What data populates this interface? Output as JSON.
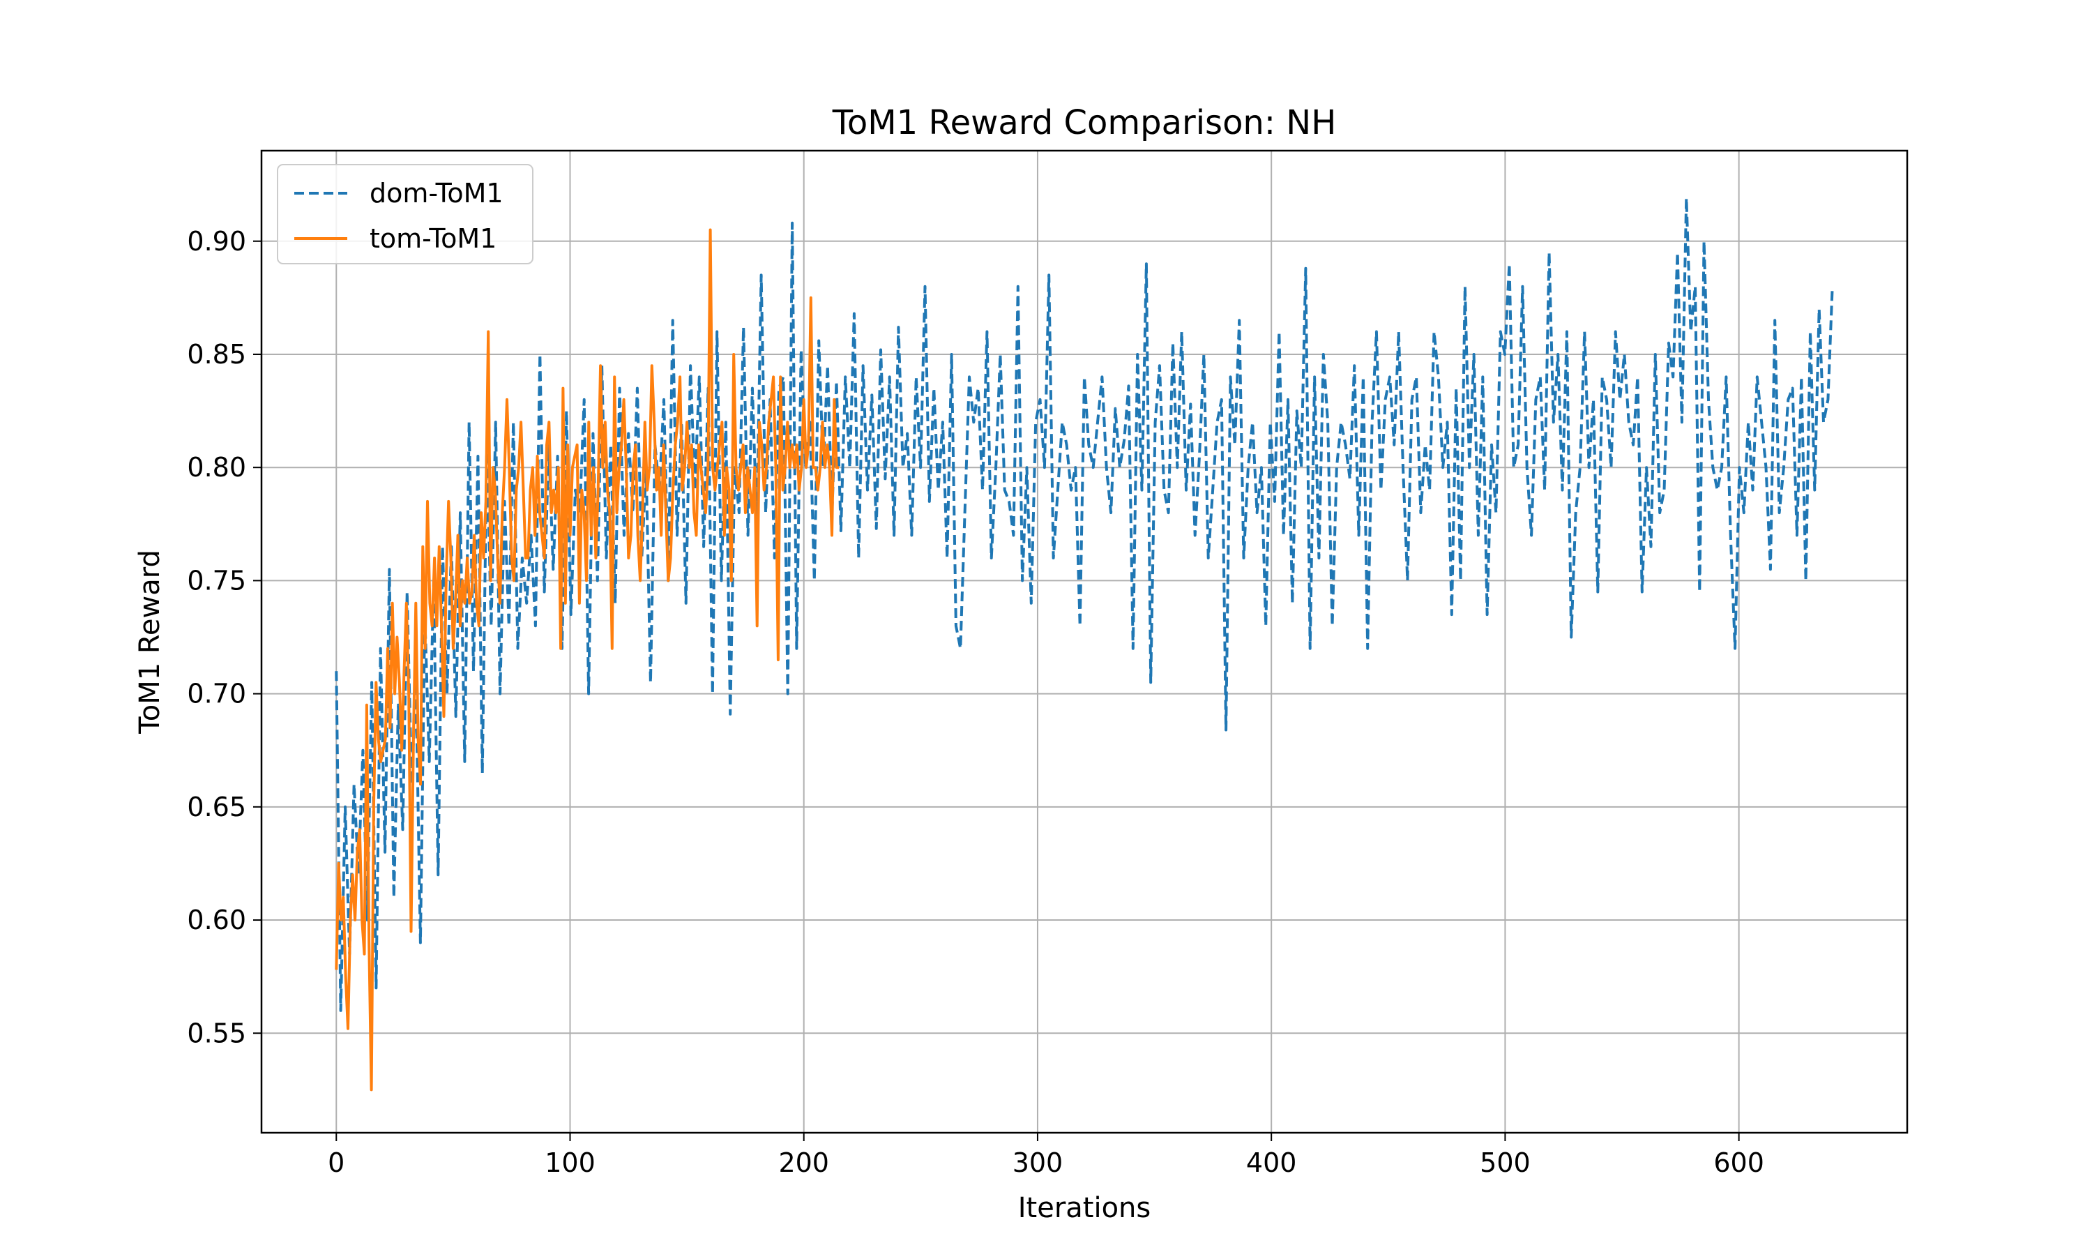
{
  "chart_data": {
    "type": "line",
    "title": "ToM1 Reward Comparison: NH",
    "xlabel": "Iterations",
    "ylabel": "ToM1 Reward",
    "xlim": [
      -32,
      672
    ],
    "ylim": [
      0.506,
      0.94
    ],
    "xticks": [
      0,
      100,
      200,
      300,
      400,
      500,
      600
    ],
    "xtick_labels": [
      "0",
      "100",
      "200",
      "300",
      "400",
      "500",
      "600"
    ],
    "yticks": [
      0.55,
      0.6,
      0.65,
      0.7,
      0.75,
      0.8,
      0.85,
      0.9
    ],
    "ytick_labels": [
      "0.55",
      "0.60",
      "0.65",
      "0.70",
      "0.75",
      "0.80",
      "0.85",
      "0.90"
    ],
    "grid": true,
    "legend_position": "top-left",
    "series": [
      {
        "name": "dom-ToM1",
        "color": "#1f77b4",
        "style": "dashed",
        "x_start": 0,
        "x_step": 2,
        "values": [
          0.71,
          0.56,
          0.65,
          0.585,
          0.66,
          0.62,
          0.675,
          0.6,
          0.705,
          0.57,
          0.72,
          0.63,
          0.755,
          0.61,
          0.695,
          0.64,
          0.745,
          0.66,
          0.705,
          0.59,
          0.735,
          0.67,
          0.75,
          0.62,
          0.765,
          0.7,
          0.765,
          0.69,
          0.78,
          0.67,
          0.82,
          0.71,
          0.805,
          0.665,
          0.81,
          0.73,
          0.82,
          0.7,
          0.785,
          0.73,
          0.82,
          0.72,
          0.76,
          0.74,
          0.77,
          0.73,
          0.85,
          0.745,
          0.81,
          0.755,
          0.805,
          0.72,
          0.825,
          0.735,
          0.79,
          0.78,
          0.83,
          0.7,
          0.815,
          0.75,
          0.845,
          0.76,
          0.81,
          0.74,
          0.835,
          0.77,
          0.815,
          0.78,
          0.835,
          0.76,
          0.8,
          0.705,
          0.81,
          0.79,
          0.83,
          0.75,
          0.865,
          0.77,
          0.82,
          0.74,
          0.845,
          0.79,
          0.84,
          0.765,
          0.835,
          0.7,
          0.86,
          0.75,
          0.82,
          0.691,
          0.8,
          0.78,
          0.862,
          0.77,
          0.835,
          0.775,
          0.885,
          0.78,
          0.83,
          0.76,
          0.835,
          0.84,
          0.7,
          0.908,
          0.72,
          0.852,
          0.8,
          0.82,
          0.75,
          0.856,
          0.8,
          0.845,
          0.78,
          0.838,
          0.772,
          0.84,
          0.8,
          0.868,
          0.76,
          0.845,
          0.79,
          0.832,
          0.773,
          0.852,
          0.795,
          0.84,
          0.77,
          0.862,
          0.8,
          0.815,
          0.77,
          0.84,
          0.8,
          0.88,
          0.785,
          0.835,
          0.79,
          0.82,
          0.76,
          0.85,
          0.73,
          0.72,
          0.78,
          0.84,
          0.82,
          0.835,
          0.79,
          0.86,
          0.76,
          0.8,
          0.85,
          0.79,
          0.785,
          0.77,
          0.88,
          0.75,
          0.8,
          0.74,
          0.82,
          0.83,
          0.8,
          0.885,
          0.76,
          0.79,
          0.82,
          0.81,
          0.79,
          0.8,
          0.73,
          0.84,
          0.81,
          0.8,
          0.82,
          0.84,
          0.8,
          0.78,
          0.826,
          0.8,
          0.812,
          0.836,
          0.72,
          0.85,
          0.79,
          0.89,
          0.705,
          0.82,
          0.845,
          0.79,
          0.78,
          0.855,
          0.8,
          0.86,
          0.79,
          0.828,
          0.77,
          0.805,
          0.85,
          0.76,
          0.79,
          0.82,
          0.83,
          0.684,
          0.84,
          0.81,
          0.865,
          0.76,
          0.8,
          0.82,
          0.78,
          0.8,
          0.73,
          0.82,
          0.785,
          0.86,
          0.77,
          0.83,
          0.74,
          0.825,
          0.8,
          0.888,
          0.72,
          0.84,
          0.76,
          0.85,
          0.82,
          0.73,
          0.8,
          0.82,
          0.81,
          0.795,
          0.845,
          0.77,
          0.84,
          0.72,
          0.82,
          0.86,
          0.79,
          0.83,
          0.84,
          0.81,
          0.86,
          0.8,
          0.75,
          0.83,
          0.84,
          0.78,
          0.81,
          0.79,
          0.86,
          0.84,
          0.8,
          0.82,
          0.735,
          0.835,
          0.75,
          0.88,
          0.8,
          0.85,
          0.77,
          0.84,
          0.735,
          0.81,
          0.78,
          0.86,
          0.85,
          0.89,
          0.8,
          0.81,
          0.88,
          0.8,
          0.77,
          0.83,
          0.84,
          0.79,
          0.895,
          0.82,
          0.85,
          0.79,
          0.86,
          0.725,
          0.78,
          0.8,
          0.86,
          0.8,
          0.83,
          0.745,
          0.84,
          0.83,
          0.8,
          0.86,
          0.83,
          0.85,
          0.82,
          0.81,
          0.84,
          0.745,
          0.8,
          0.765,
          0.85,
          0.78,
          0.79,
          0.855,
          0.84,
          0.895,
          0.82,
          0.919,
          0.86,
          0.88,
          0.745,
          0.9,
          0.83,
          0.8,
          0.79,
          0.8,
          0.84,
          0.77,
          0.72,
          0.8,
          0.78,
          0.82,
          0.79,
          0.84,
          0.82,
          0.8,
          0.755,
          0.865,
          0.78,
          0.8,
          0.83,
          0.835,
          0.77,
          0.84,
          0.75,
          0.86,
          0.79,
          0.87,
          0.82,
          0.83,
          0.88
        ],
        "x_max": 640
      },
      {
        "name": "tom-ToM1",
        "color": "#ff7f0e",
        "style": "solid",
        "x_start": 0,
        "x_step": 1,
        "values": [
          0.578,
          0.625,
          0.6,
          0.61,
          0.575,
          0.552,
          0.6,
          0.62,
          0.6,
          0.63,
          0.64,
          0.6,
          0.585,
          0.695,
          0.59,
          0.525,
          0.65,
          0.705,
          0.68,
          0.67,
          0.675,
          0.68,
          0.72,
          0.685,
          0.74,
          0.7,
          0.725,
          0.705,
          0.675,
          0.71,
          0.74,
          0.7,
          0.595,
          0.68,
          0.74,
          0.68,
          0.66,
          0.765,
          0.72,
          0.785,
          0.74,
          0.73,
          0.76,
          0.73,
          0.765,
          0.73,
          0.69,
          0.75,
          0.785,
          0.76,
          0.72,
          0.74,
          0.77,
          0.73,
          0.75,
          0.74,
          0.76,
          0.74,
          0.745,
          0.77,
          0.74,
          0.73,
          0.78,
          0.76,
          0.785,
          0.86,
          0.75,
          0.8,
          0.79,
          0.76,
          0.74,
          0.78,
          0.8,
          0.83,
          0.8,
          0.76,
          0.75,
          0.79,
          0.8,
          0.82,
          0.79,
          0.76,
          0.76,
          0.79,
          0.8,
          0.77,
          0.805,
          0.78,
          0.77,
          0.76,
          0.81,
          0.82,
          0.78,
          0.79,
          0.78,
          0.8,
          0.72,
          0.835,
          0.74,
          0.81,
          0.77,
          0.8,
          0.805,
          0.81,
          0.74,
          0.79,
          0.78,
          0.75,
          0.82,
          0.77,
          0.8,
          0.76,
          0.79,
          0.845,
          0.8,
          0.82,
          0.79,
          0.78,
          0.72,
          0.84,
          0.78,
          0.8,
          0.81,
          0.83,
          0.8,
          0.76,
          0.77,
          0.8,
          0.81,
          0.77,
          0.75,
          0.78,
          0.82,
          0.79,
          0.8,
          0.845,
          0.82,
          0.79,
          0.8,
          0.77,
          0.81,
          0.78,
          0.75,
          0.76,
          0.79,
          0.81,
          0.82,
          0.84,
          0.79,
          0.8,
          0.82,
          0.8,
          0.81,
          0.78,
          0.77,
          0.81,
          0.8,
          0.79,
          0.78,
          0.8,
          0.905,
          0.8,
          0.79,
          0.8,
          0.81,
          0.82,
          0.77,
          0.8,
          0.79,
          0.75,
          0.85,
          0.8,
          0.79,
          0.8,
          0.81,
          0.78,
          0.8,
          0.79,
          0.78,
          0.8,
          0.73,
          0.82,
          0.81,
          0.79,
          0.8,
          0.82,
          0.83,
          0.84,
          0.8,
          0.715,
          0.84,
          0.79,
          0.8,
          0.82,
          0.8,
          0.81,
          0.8,
          0.81,
          0.79,
          0.8,
          0.83,
          0.8,
          0.81,
          0.875,
          0.8,
          0.8,
          0.79,
          0.8,
          0.82,
          0.8,
          0.81,
          0.8,
          0.77,
          0.83,
          0.8,
          0.8
        ]
      }
    ]
  }
}
